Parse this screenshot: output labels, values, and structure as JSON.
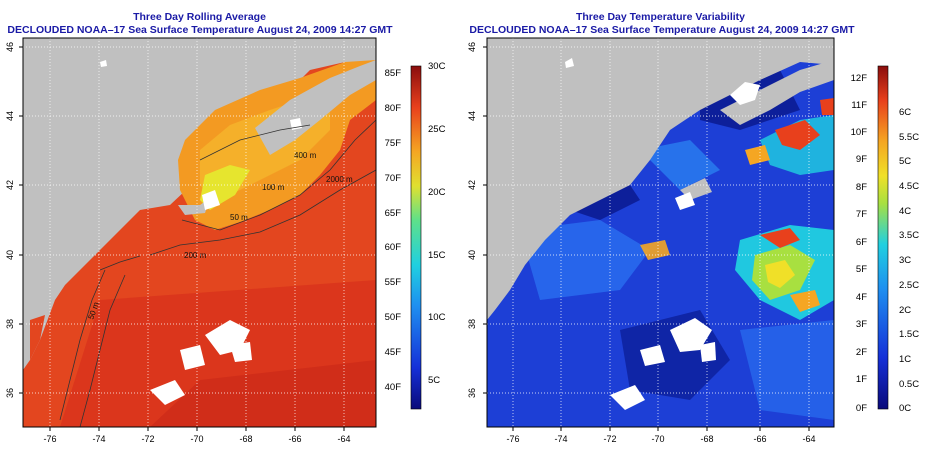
{
  "left_panel": {
    "title_line1": "Three Day Rolling Average",
    "title_line2": "DECLOUDED NOAA–17 Sea Surface Temperature August 24, 2009 14:27 GMT",
    "x_ticks": [
      "-76",
      "-74",
      "-72",
      "-70",
      "-68",
      "-66",
      "-64"
    ],
    "y_ticks": [
      "46",
      "44",
      "42",
      "40",
      "38",
      "36"
    ],
    "contour_labels": [
      "400 m",
      "2000 m",
      "100 m",
      "50 m",
      "200 m",
      "50 m"
    ],
    "colorbar_f": [
      "85F",
      "80F",
      "75F",
      "70F",
      "65F",
      "60F",
      "55F",
      "50F",
      "45F",
      "40F"
    ],
    "colorbar_c": [
      "30C",
      "25C",
      "20C",
      "15C",
      "10C",
      "5C"
    ]
  },
  "right_panel": {
    "title_line1": "Three Day Temperature Variability",
    "title_line2": "DECLOUDED NOAA–17 Sea Surface Temperature August 24, 2009 14:27 GMT",
    "x_ticks": [
      "-76",
      "-74",
      "-72",
      "-70",
      "-68",
      "-66",
      "-64"
    ],
    "y_ticks": [
      "46",
      "44",
      "42",
      "40",
      "38",
      "36"
    ],
    "colorbar_f": [
      "12F",
      "11F",
      "10F",
      "9F",
      "8F",
      "7F",
      "6F",
      "5F",
      "4F",
      "3F",
      "2F",
      "1F",
      "0F"
    ],
    "colorbar_c": [
      "6C",
      "5.5C",
      "5C",
      "4.5C",
      "4C",
      "3.5C",
      "3C",
      "2.5C",
      "2C",
      "1.5C",
      "1C",
      "0.5C",
      "0C"
    ]
  },
  "colors": {
    "land": "#c0c0c0",
    "cloud": "#ffffff",
    "title": "#1a1aa6",
    "warm_sst": "#e8401c",
    "low_variability": "#1d3fd6"
  }
}
